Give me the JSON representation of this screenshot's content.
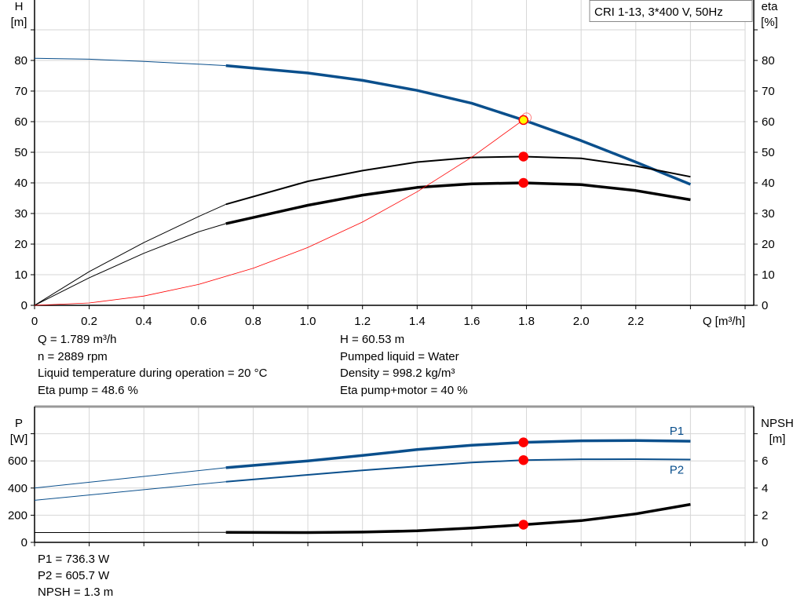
{
  "chart_data": [
    {
      "type": "line",
      "title_box": "CRI 1-13, 3*400 V, 50Hz",
      "xlabel": "Q [m³/h]",
      "ylabel_left": [
        "H",
        "[m]"
      ],
      "ylabel_right": [
        "eta",
        "[%]"
      ],
      "xlim": [
        0,
        2.6
      ],
      "ylim": [
        0,
        100
      ],
      "xticks": [
        "0",
        "0.2",
        "0.4",
        "0.6",
        "0.8",
        "1.0",
        "1.2",
        "1.4",
        "1.6",
        "1.8",
        "2.0",
        "2.2"
      ],
      "yticks": [
        "0",
        "10",
        "20",
        "30",
        "40",
        "50",
        "60",
        "70",
        "80"
      ],
      "grid": true,
      "thick_from_q": 0.7,
      "series": [
        {
          "id": "head",
          "color": "#0a4f8c",
          "x": [
            0,
            0.2,
            0.4,
            0.6,
            0.7,
            1.0,
            1.2,
            1.4,
            1.6,
            1.789,
            2.0,
            2.2,
            2.4
          ],
          "y": [
            80.7,
            80.4,
            79.7,
            78.8,
            78.3,
            75.9,
            73.5,
            70.2,
            66.0,
            60.53,
            53.8,
            46.8,
            39.5
          ]
        },
        {
          "id": "eta-pump",
          "color": "#000000",
          "x": [
            0,
            0.2,
            0.4,
            0.6,
            0.7,
            1.0,
            1.2,
            1.4,
            1.6,
            1.789,
            2.0,
            2.2,
            2.4
          ],
          "y": [
            0,
            11,
            20.5,
            29,
            33,
            40.5,
            44,
            46.8,
            48.3,
            48.6,
            48,
            45.5,
            42
          ]
        },
        {
          "id": "eta-pump-motor",
          "color": "#000000",
          "x": [
            0,
            0.2,
            0.4,
            0.6,
            0.7,
            1.0,
            1.2,
            1.4,
            1.6,
            1.789,
            2.0,
            2.2,
            2.4
          ],
          "y": [
            0,
            9,
            17,
            24,
            26.7,
            32.7,
            36,
            38.5,
            39.7,
            40,
            39.4,
            37.5,
            34.5
          ]
        },
        {
          "id": "system-curve",
          "color": "#ff0000",
          "x": [
            0,
            0.2,
            0.4,
            0.6,
            0.8,
            1.0,
            1.2,
            1.4,
            1.6,
            1.8
          ],
          "y": [
            0,
            0.76,
            3.03,
            6.81,
            12.1,
            18.9,
            27.2,
            37.1,
            48.4,
            61.3
          ]
        }
      ],
      "operating_points": [
        {
          "id": "head",
          "x": 1.789,
          "y": 60.53,
          "color": "#ffff00",
          "stroke": "#ff0000"
        },
        {
          "id": "eta-pump",
          "x": 1.789,
          "y": 48.6,
          "color": "#ff0000"
        },
        {
          "id": "eta-pump-motor",
          "x": 1.789,
          "y": 40,
          "color": "#ff0000"
        }
      ]
    },
    {
      "type": "line",
      "ylabel_left": [
        "P",
        "[W]"
      ],
      "ylabel_right": [
        "NPSH",
        "[m]"
      ],
      "xlim": [
        0,
        2.6
      ],
      "ylim": [
        0,
        1000
      ],
      "ylim_right": [
        0,
        10
      ],
      "yticks": [
        "0",
        "200",
        "400",
        "600"
      ],
      "yticks_right": [
        "0",
        "2",
        "4",
        "6"
      ],
      "grid": true,
      "thick_from_q": 0.7,
      "series": [
        {
          "id": "p1",
          "name": "P1",
          "color": "#0a4f8c",
          "x": [
            0,
            0.7,
            1.0,
            1.2,
            1.4,
            1.6,
            1.789,
            2.0,
            2.2,
            2.4
          ],
          "y": [
            400,
            550,
            600,
            640,
            683,
            715,
            736.3,
            748,
            750,
            745
          ]
        },
        {
          "id": "p2",
          "name": "P2",
          "color": "#0a4f8c",
          "x": [
            0,
            0.7,
            1.0,
            1.2,
            1.4,
            1.6,
            1.789,
            2.0,
            2.2,
            2.4
          ],
          "y": [
            310,
            447,
            497,
            530,
            560,
            588,
            605.7,
            612,
            613,
            610
          ]
        },
        {
          "id": "npsh",
          "color": "#000000",
          "axis": "right",
          "x": [
            0,
            0.2,
            0.7,
            1.0,
            1.2,
            1.4,
            1.6,
            1.789,
            2.0,
            2.2,
            2.4
          ],
          "y": [
            0.72,
            0.72,
            0.74,
            0.72,
            0.76,
            0.85,
            1.05,
            1.3,
            1.6,
            2.1,
            2.8
          ]
        }
      ],
      "operating_points": [
        {
          "id": "p1",
          "x": 1.789,
          "y": 736.3,
          "color": "#ff0000"
        },
        {
          "id": "p2",
          "x": 1.789,
          "y": 605.7,
          "color": "#ff0000"
        },
        {
          "id": "npsh",
          "x": 1.789,
          "y": 130,
          "color": "#ff0000"
        }
      ]
    }
  ],
  "info_top": {
    "left": [
      "Q = 1.789 m³/h",
      "n = 2889 rpm",
      "Liquid temperature during operation = 20 °C",
      "Eta pump = 48.6 %"
    ],
    "right": [
      "H = 60.53 m",
      "Pumped liquid = Water",
      "Density = 998.2 kg/m³",
      "Eta pump+motor = 40 %"
    ]
  },
  "info_bottom": [
    "P1 = 736.3 W",
    "P2 = 605.7 W",
    "NPSH = 1.3 m"
  ]
}
